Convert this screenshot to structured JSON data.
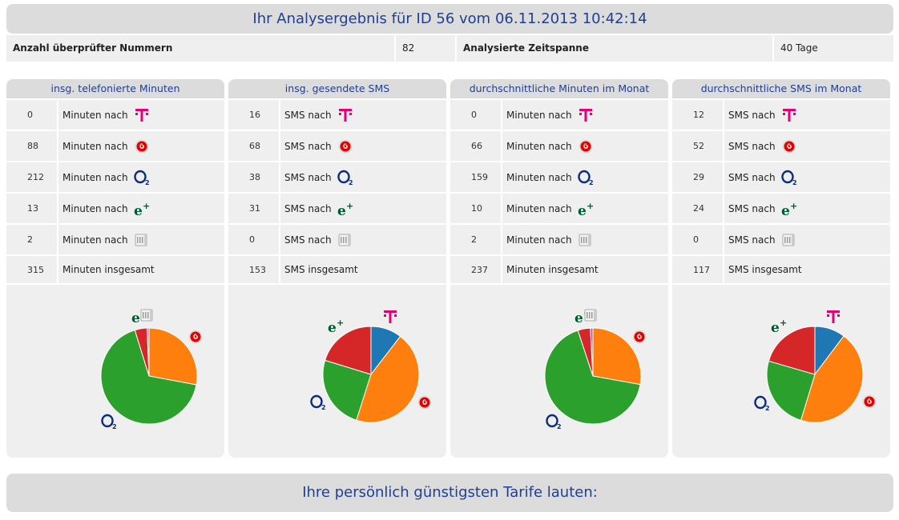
{
  "header": {
    "title": "Ihr Analysergebnis für ID 56 vom 06.11.2013 10:42:14"
  },
  "summary": {
    "numbers_label": "Anzahl überprüfter Nummern",
    "numbers_value": "82",
    "span_label": "Analysierte Zeitspanne",
    "span_value": "40 Tage"
  },
  "colors": {
    "telekom": "#e20074",
    "vodafone": "#e60000",
    "o2": "#0a2c7a",
    "eplus": "#005a32",
    "title": "#1f3f93"
  },
  "columns": [
    {
      "title": "insg. telefonierte Minuten",
      "rows": [
        {
          "value": "0",
          "label": "Minuten nach",
          "logo": "telekom-icon"
        },
        {
          "value": "88",
          "label": "Minuten nach",
          "logo": "vodafone-icon"
        },
        {
          "value": "212",
          "label": "Minuten nach",
          "logo": "o2-icon"
        },
        {
          "value": "13",
          "label": "Minuten nach",
          "logo": "eplus-icon"
        },
        {
          "value": "2",
          "label": "Minuten nach",
          "logo": "landline-icon"
        }
      ],
      "total": {
        "value": "315",
        "label": "Minuten insgesamt"
      }
    },
    {
      "title": "insg. gesendete SMS",
      "rows": [
        {
          "value": "16",
          "label": "SMS nach",
          "logo": "telekom-icon"
        },
        {
          "value": "68",
          "label": "SMS nach",
          "logo": "vodafone-icon"
        },
        {
          "value": "38",
          "label": "SMS nach",
          "logo": "o2-icon"
        },
        {
          "value": "31",
          "label": "SMS nach",
          "logo": "eplus-icon"
        },
        {
          "value": "0",
          "label": "SMS nach",
          "logo": "landline-icon"
        }
      ],
      "total": {
        "value": "153",
        "label": "SMS insgesamt"
      }
    },
    {
      "title": "durchschnittliche Minuten im Monat",
      "rows": [
        {
          "value": "0",
          "label": "Minuten nach",
          "logo": "telekom-icon"
        },
        {
          "value": "66",
          "label": "Minuten nach",
          "logo": "vodafone-icon"
        },
        {
          "value": "159",
          "label": "Minuten nach",
          "logo": "o2-icon"
        },
        {
          "value": "10",
          "label": "Minuten nach",
          "logo": "eplus-icon"
        },
        {
          "value": "2",
          "label": "Minuten nach",
          "logo": "landline-icon"
        }
      ],
      "total": {
        "value": "237",
        "label": "Minuten insgesamt"
      }
    },
    {
      "title": "durchschnittliche SMS im Monat",
      "rows": [
        {
          "value": "12",
          "label": "SMS nach",
          "logo": "telekom-icon"
        },
        {
          "value": "52",
          "label": "SMS nach",
          "logo": "vodafone-icon"
        },
        {
          "value": "29",
          "label": "SMS nach",
          "logo": "o2-icon"
        },
        {
          "value": "24",
          "label": "SMS nach",
          "logo": "eplus-icon"
        },
        {
          "value": "0",
          "label": "SMS nach",
          "logo": "landline-icon"
        }
      ],
      "total": {
        "value": "117",
        "label": "SMS insgesamt"
      }
    }
  ],
  "chart_data": [
    {
      "type": "pie",
      "slices": [
        {
          "operator": "telekom-icon",
          "value": 0,
          "color": "#1f77b4"
        },
        {
          "operator": "vodafone-icon",
          "value": 88,
          "color": "#ff7f0e"
        },
        {
          "operator": "o2-icon",
          "value": 212,
          "color": "#2ca02c"
        },
        {
          "operator": "eplus-icon",
          "value": 13,
          "color": "#d62728"
        },
        {
          "operator": "landline-icon",
          "value": 2,
          "color": "#9467bd"
        }
      ]
    },
    {
      "type": "pie",
      "slices": [
        {
          "operator": "telekom-icon",
          "value": 16,
          "color": "#1f77b4"
        },
        {
          "operator": "vodafone-icon",
          "value": 68,
          "color": "#ff7f0e"
        },
        {
          "operator": "o2-icon",
          "value": 38,
          "color": "#2ca02c"
        },
        {
          "operator": "eplus-icon",
          "value": 31,
          "color": "#d62728"
        },
        {
          "operator": "landline-icon",
          "value": 0,
          "color": "#9467bd"
        }
      ]
    },
    {
      "type": "pie",
      "slices": [
        {
          "operator": "telekom-icon",
          "value": 0,
          "color": "#1f77b4"
        },
        {
          "operator": "vodafone-icon",
          "value": 66,
          "color": "#ff7f0e"
        },
        {
          "operator": "o2-icon",
          "value": 159,
          "color": "#2ca02c"
        },
        {
          "operator": "eplus-icon",
          "value": 10,
          "color": "#d62728"
        },
        {
          "operator": "landline-icon",
          "value": 2,
          "color": "#9467bd"
        }
      ]
    },
    {
      "type": "pie",
      "slices": [
        {
          "operator": "telekom-icon",
          "value": 12,
          "color": "#1f77b4"
        },
        {
          "operator": "vodafone-icon",
          "value": 52,
          "color": "#ff7f0e"
        },
        {
          "operator": "o2-icon",
          "value": 29,
          "color": "#2ca02c"
        },
        {
          "operator": "eplus-icon",
          "value": 24,
          "color": "#d62728"
        },
        {
          "operator": "landline-icon",
          "value": 0,
          "color": "#9467bd"
        }
      ]
    }
  ],
  "footer": {
    "title": "Ihre persönlich günstigsten Tarife lauten:"
  }
}
